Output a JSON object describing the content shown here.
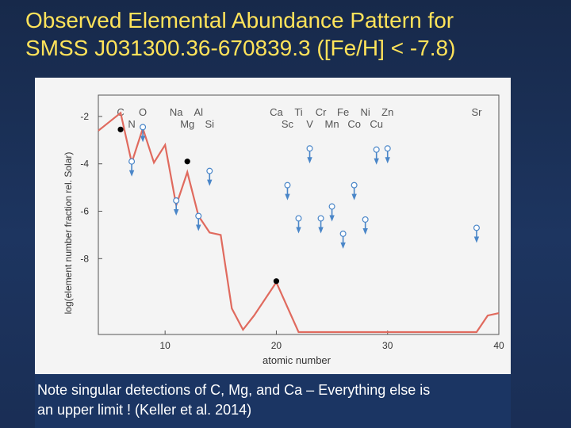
{
  "slide": {
    "title_line1": "Observed Elemental Abundance Pattern for",
    "title_line2": "SMSS J031300.36-670839.3 ([Fe/H] < -7.8)",
    "caption_line1": "Note singular detections of C, Mg, and Ca – Everything else is",
    "caption_line2": "an upper limit !   (Keller et al. 2014)"
  },
  "colors": {
    "title": "#ffe35a",
    "background": "#1d3560",
    "model_line": "#e06a5e",
    "upper_limit": "#4a86c8",
    "detection": "#000000"
  },
  "chart_data": {
    "type": "scatter",
    "xlabel": "atomic number",
    "ylabel": "log(element number fraction rel. Solar)",
    "xlim": [
      4,
      40
    ],
    "ylim": [
      -11.2,
      -1.1
    ],
    "x_ticks": [
      10,
      20,
      30,
      40
    ],
    "y_ticks": [
      -2,
      -4,
      -6,
      -8
    ],
    "element_labels": [
      {
        "symbol": "C",
        "z": 6,
        "row": 1
      },
      {
        "symbol": "N",
        "z": 7,
        "row": 2
      },
      {
        "symbol": "O",
        "z": 8,
        "row": 1
      },
      {
        "symbol": "Na",
        "z": 11,
        "row": 1
      },
      {
        "symbol": "Mg",
        "z": 12,
        "row": 2
      },
      {
        "symbol": "Al",
        "z": 13,
        "row": 1
      },
      {
        "symbol": "Si",
        "z": 14,
        "row": 2
      },
      {
        "symbol": "Ca",
        "z": 20,
        "row": 1
      },
      {
        "symbol": "Sc",
        "z": 21,
        "row": 2
      },
      {
        "symbol": "Ti",
        "z": 22,
        "row": 1
      },
      {
        "symbol": "V",
        "z": 23,
        "row": 2
      },
      {
        "symbol": "Cr",
        "z": 24,
        "row": 1
      },
      {
        "symbol": "Mn",
        "z": 25,
        "row": 2
      },
      {
        "symbol": "Fe",
        "z": 26,
        "row": 1
      },
      {
        "symbol": "Co",
        "z": 27,
        "row": 2
      },
      {
        "symbol": "Ni",
        "z": 28,
        "row": 1
      },
      {
        "symbol": "Cu",
        "z": 29,
        "row": 2
      },
      {
        "symbol": "Zn",
        "z": 30,
        "row": 1
      },
      {
        "symbol": "Sr",
        "z": 38,
        "row": 1
      }
    ],
    "series": [
      {
        "kind": "detection",
        "points": [
          {
            "x": 6,
            "y": -2.55
          },
          {
            "x": 12,
            "y": -3.9
          },
          {
            "x": 20,
            "y": -8.95
          }
        ]
      },
      {
        "kind": "upper_limit",
        "points": [
          {
            "x": 7,
            "y": -3.9
          },
          {
            "x": 8,
            "y": -2.45
          },
          {
            "x": 11,
            "y": -5.55
          },
          {
            "x": 14,
            "y": -4.3
          },
          {
            "x": 13,
            "y": -6.2
          },
          {
            "x": 21,
            "y": -4.9
          },
          {
            "x": 22,
            "y": -6.3
          },
          {
            "x": 23,
            "y": -3.35
          },
          {
            "x": 24,
            "y": -6.3
          },
          {
            "x": 25,
            "y": -5.8
          },
          {
            "x": 26,
            "y": -6.95
          },
          {
            "x": 27,
            "y": -4.9
          },
          {
            "x": 28,
            "y": -6.35
          },
          {
            "x": 29,
            "y": -3.4
          },
          {
            "x": 30,
            "y": -3.35
          },
          {
            "x": 38,
            "y": -6.7
          }
        ]
      },
      {
        "kind": "model_line",
        "points": [
          {
            "x": 4,
            "y": -2.6
          },
          {
            "x": 6,
            "y": -1.85
          },
          {
            "x": 7,
            "y": -3.95
          },
          {
            "x": 8,
            "y": -2.5
          },
          {
            "x": 9,
            "y": -3.95
          },
          {
            "x": 10,
            "y": -3.2
          },
          {
            "x": 11,
            "y": -5.75
          },
          {
            "x": 12,
            "y": -4.35
          },
          {
            "x": 13,
            "y": -6.2
          },
          {
            "x": 14,
            "y": -6.9
          },
          {
            "x": 15,
            "y": -7.0
          },
          {
            "x": 16,
            "y": -10.1
          },
          {
            "x": 17,
            "y": -11.0
          },
          {
            "x": 18,
            "y": -10.4
          },
          {
            "x": 20,
            "y": -9.0
          },
          {
            "x": 22,
            "y": -11.1
          },
          {
            "x": 38,
            "y": -11.1
          },
          {
            "x": 39,
            "y": -10.4
          },
          {
            "x": 40,
            "y": -10.3
          }
        ]
      }
    ]
  }
}
